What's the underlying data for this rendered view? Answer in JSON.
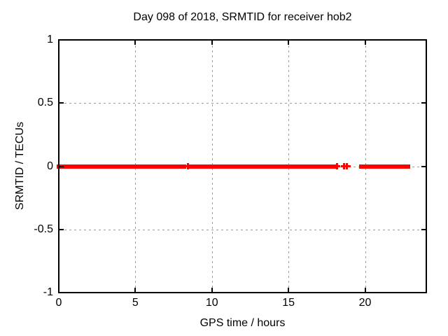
{
  "page": {
    "background": "#ffffff"
  },
  "chart_data": {
    "type": "scatter",
    "title": "Day 098 of 2018, SRMTID for receiver hob2",
    "xlabel": "GPS time / hours",
    "ylabel": "SRMTID / TECUs",
    "xlim": [
      0,
      24
    ],
    "ylim": [
      -1,
      1
    ],
    "xticks": [
      0,
      5,
      10,
      15,
      20
    ],
    "xtick_labels": [
      "0",
      "5",
      "10",
      "15",
      "20"
    ],
    "yticks": [
      -1,
      -0.5,
      0,
      0.5,
      1
    ],
    "ytick_labels": [
      "-1",
      "-0.5",
      "0",
      "0.5",
      "1"
    ],
    "grid": true,
    "legend": "none",
    "marker": "plus",
    "marker_color": "#ff0000",
    "axis_color": "#000000",
    "grid_color": "#9e9e9e",
    "series": [
      {
        "name": "SRMTID",
        "y_value": 0,
        "segments_hours": [
          [
            0.0,
            8.2
          ],
          [
            8.6,
            9.2
          ],
          [
            9.4,
            18.0
          ],
          [
            19.75,
            20.5
          ],
          [
            20.6,
            21.1
          ],
          [
            21.25,
            21.7
          ],
          [
            21.8,
            22.8
          ]
        ],
        "isolated_points_hours": [
          8.44,
          18.15,
          18.62,
          18.82
        ]
      }
    ]
  }
}
